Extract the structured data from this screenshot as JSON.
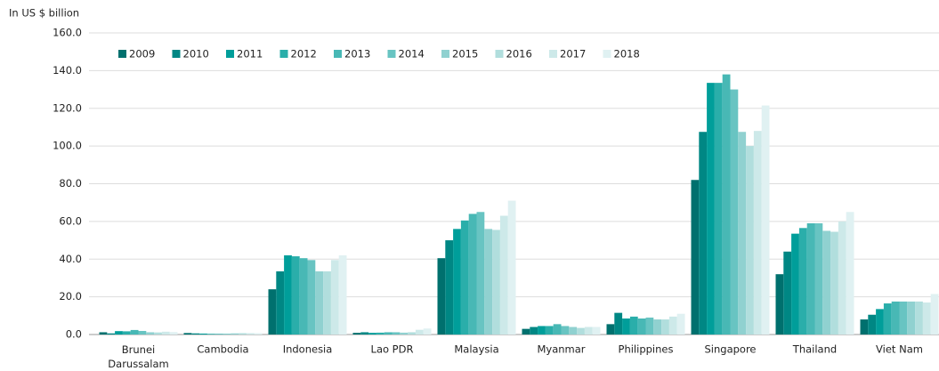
{
  "chart_data": {
    "type": "bar",
    "y_axis_label": "In US $ billion",
    "categories": [
      "Brunei Darussalam",
      "Cambodia",
      "Indonesia",
      "Lao PDR",
      "Malaysia",
      "Myanmar",
      "Philippines",
      "Singapore",
      "Thailand",
      "Viet Nam"
    ],
    "series": [
      {
        "name": "2009",
        "color": "#00706e",
        "values": [
          1.2,
          0.8,
          24,
          0.9,
          40.5,
          3,
          5.5,
          82,
          32,
          8
        ]
      },
      {
        "name": "2010",
        "color": "#008784",
        "values": [
          0.6,
          0.6,
          33.5,
          1.2,
          50,
          4,
          11.5,
          107.5,
          44,
          10.5
        ]
      },
      {
        "name": "2011",
        "color": "#009e9a",
        "values": [
          1.8,
          0.5,
          42,
          0.9,
          56,
          4.5,
          8.5,
          133.5,
          53.5,
          13.5
        ]
      },
      {
        "name": "2012",
        "color": "#2aaeaa",
        "values": [
          1.7,
          0.4,
          41.5,
          1,
          60.5,
          4.5,
          9.5,
          133.5,
          56.5,
          16.5
        ]
      },
      {
        "name": "2013",
        "color": "#48b8b5",
        "values": [
          2.4,
          0.4,
          40.5,
          1.2,
          64,
          5.5,
          8.5,
          138,
          59,
          17.5
        ]
      },
      {
        "name": "2014",
        "color": "#68c4c2",
        "values": [
          1.9,
          0.4,
          39.5,
          1.2,
          65,
          4.5,
          9,
          130,
          59,
          17.5
        ]
      },
      {
        "name": "2015",
        "color": "#90d1d0",
        "values": [
          1.2,
          0.6,
          33.5,
          1,
          56,
          4,
          8,
          107.5,
          55,
          17.5
        ]
      },
      {
        "name": "2016",
        "color": "#b1dedd",
        "values": [
          1.1,
          0.7,
          33.5,
          1.2,
          55.5,
          3.5,
          8,
          100,
          54.5,
          17.5
        ]
      },
      {
        "name": "2017",
        "color": "#cde9e9",
        "values": [
          1.5,
          0.7,
          39.5,
          2.5,
          63,
          4,
          9.5,
          108,
          60,
          17
        ]
      },
      {
        "name": "2018",
        "color": "#e0f1f2",
        "values": [
          1.3,
          0.7,
          42,
          3.2,
          71,
          4,
          11,
          121.5,
          65,
          21.5
        ]
      }
    ],
    "ylim": [
      0,
      160
    ],
    "yticks": [
      {
        "value": 0,
        "label": "0.0"
      },
      {
        "value": 20,
        "label": "20.0"
      },
      {
        "value": 40,
        "label": "40.0"
      },
      {
        "value": 60,
        "label": "60.0"
      },
      {
        "value": 80,
        "label": "80.0"
      },
      {
        "value": 100,
        "label": "100.0"
      },
      {
        "value": 120,
        "label": "120.0"
      },
      {
        "value": 140,
        "label": "140.0"
      },
      {
        "value": 160,
        "label": "160.0"
      }
    ],
    "grid": true,
    "legend": "top-left"
  }
}
